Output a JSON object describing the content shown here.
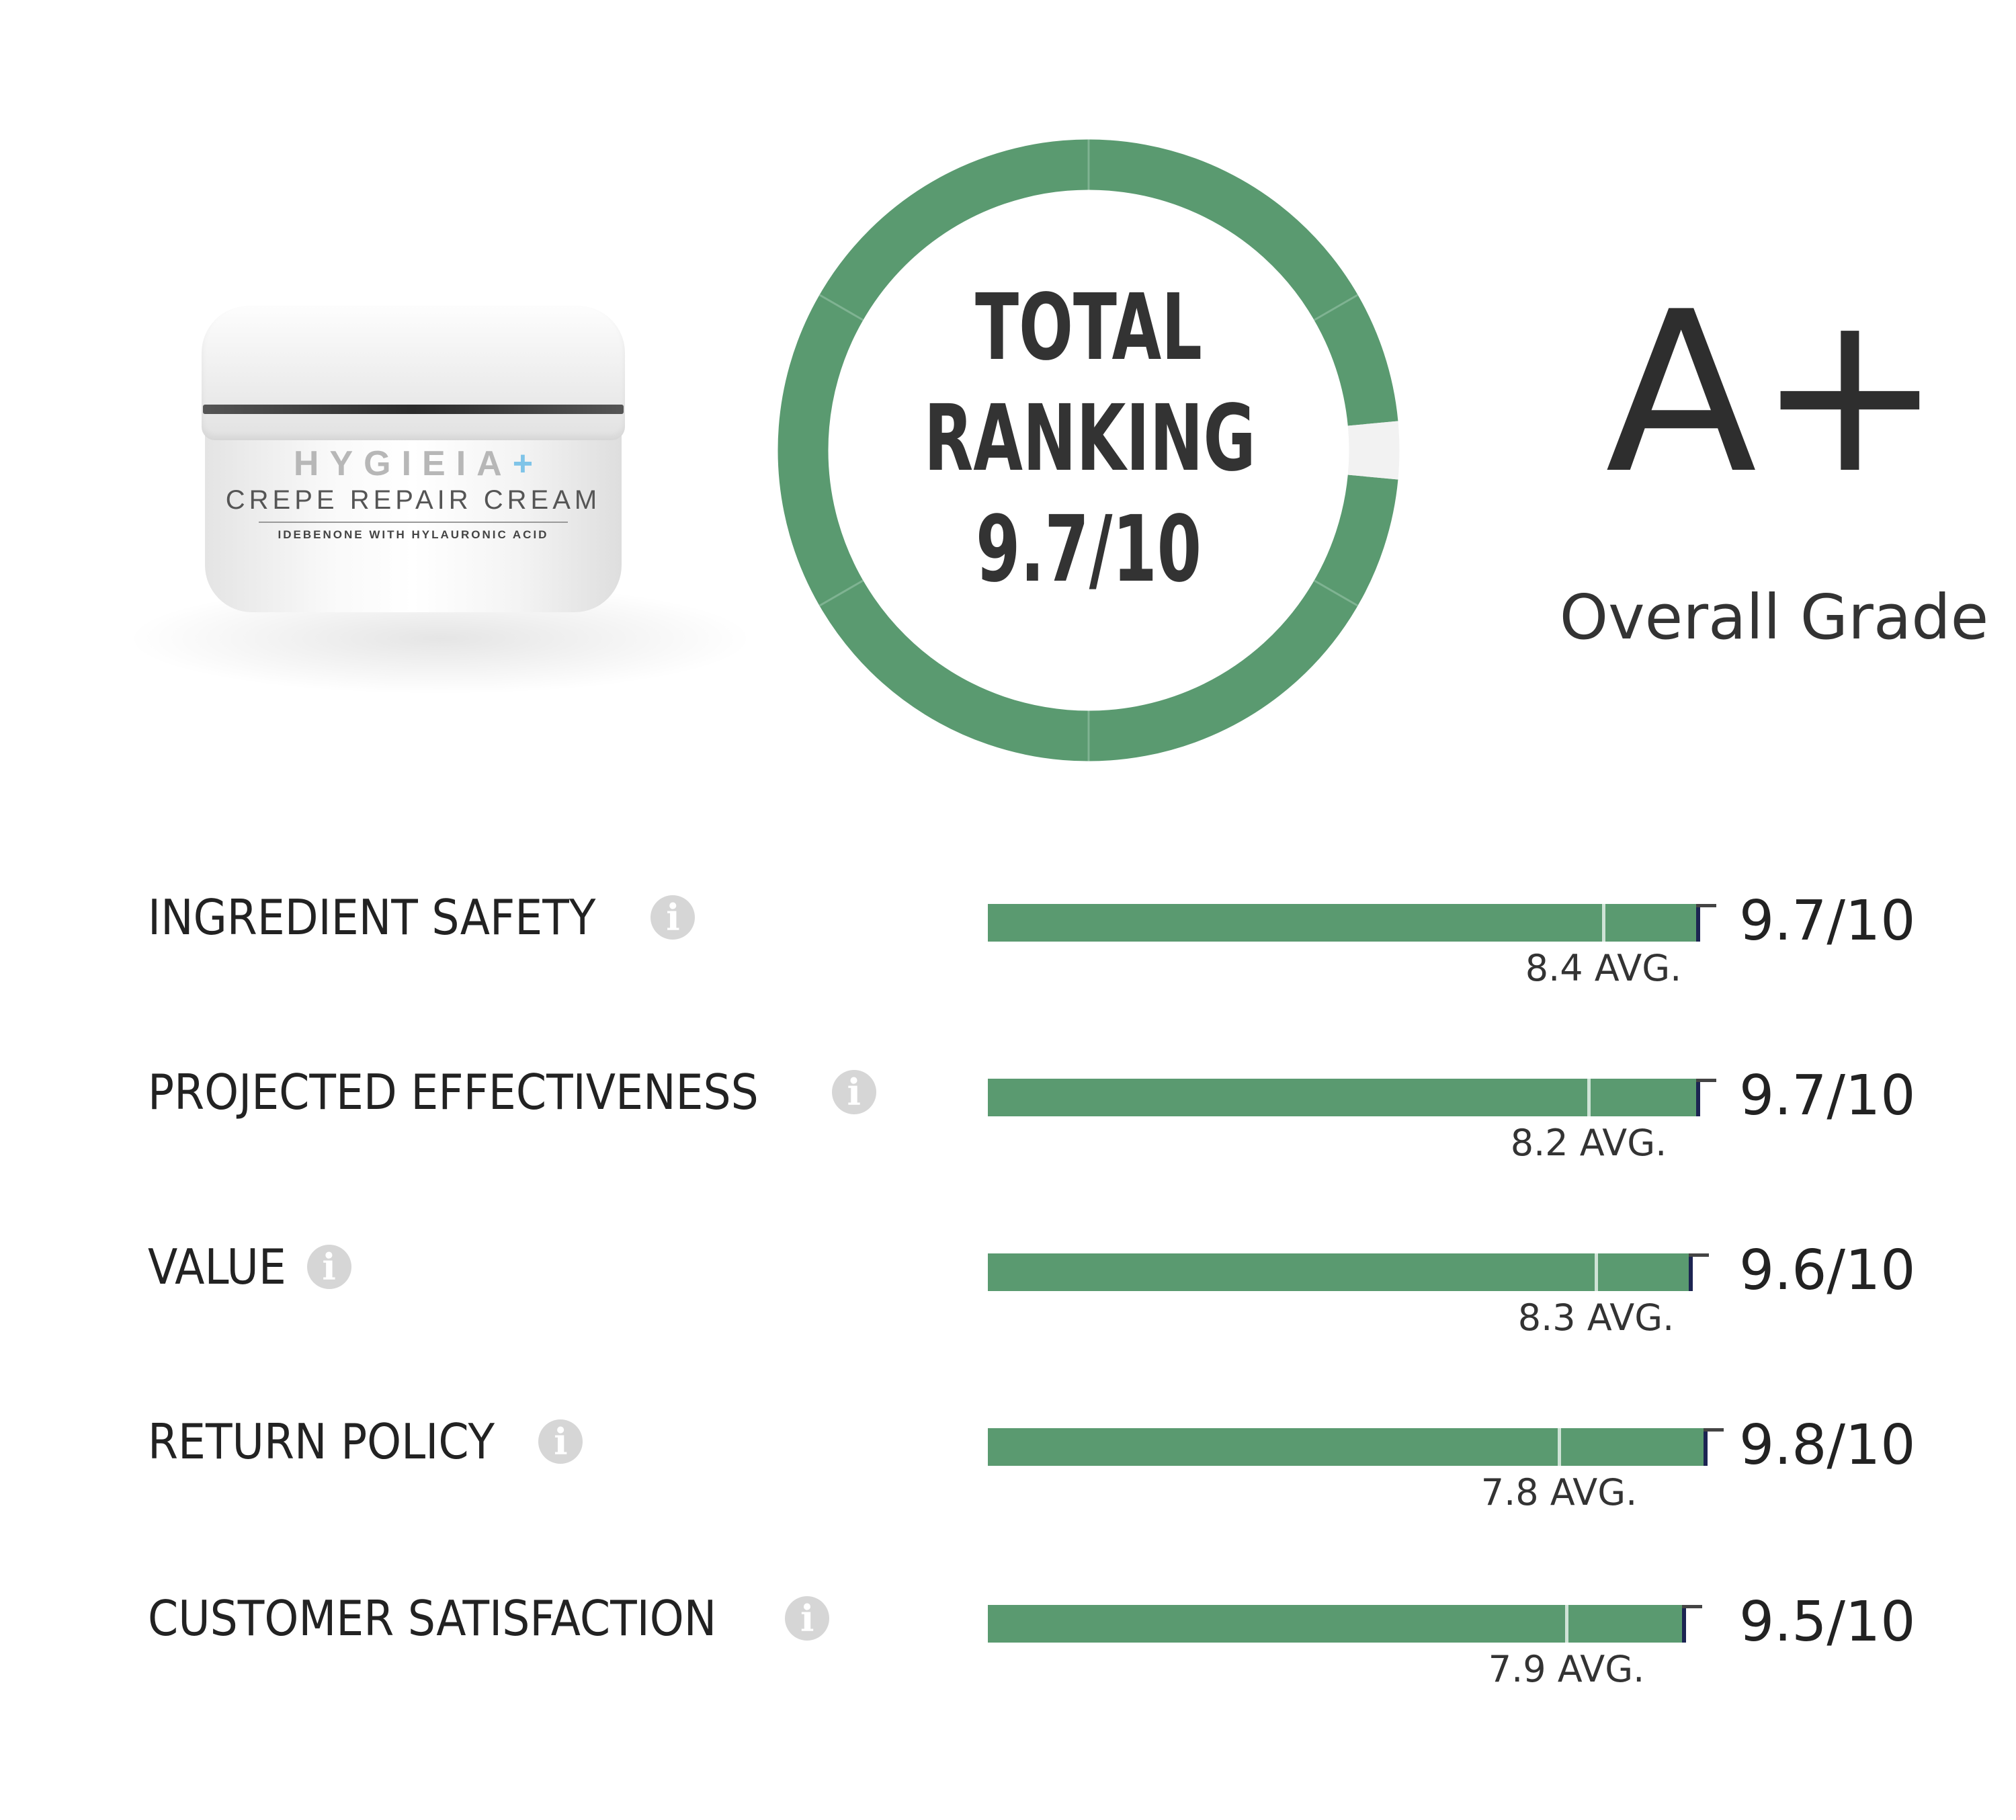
{
  "product": {
    "brand": "HYGIEIA",
    "brand_mark": "+",
    "name": "CREPE REPAIR CREAM",
    "subtitle": "IDEBENONE WITH HYLAURONIC ACID"
  },
  "total_ranking": {
    "line1": "TOTAL",
    "line2": "RANKING",
    "score": "9.7/10",
    "score_value": 9.7,
    "max": 10
  },
  "grade": {
    "value": "A+",
    "label": "Overall Grade"
  },
  "colors": {
    "accent_green": "#5a9a70",
    "ring_gap": "#f2f2f2",
    "marker_navy": "#1c2452"
  },
  "info_icon": "info-circle-icon",
  "metrics": [
    {
      "label": "INGREDIENT SAFETY",
      "score": "9.7/10",
      "score_value": 9.7,
      "avg": "8.4 AVG.",
      "avg_value": 8.4
    },
    {
      "label": "PROJECTED EFFECTIVENESS",
      "score": "9.7/10",
      "score_value": 9.7,
      "avg": "8.2 AVG.",
      "avg_value": 8.2
    },
    {
      "label": "VALUE",
      "score": "9.6/10",
      "score_value": 9.6,
      "avg": "8.3 AVG.",
      "avg_value": 8.3
    },
    {
      "label": "RETURN POLICY",
      "score": "9.8/10",
      "score_value": 9.8,
      "avg": "7.8 AVG.",
      "avg_value": 7.8
    },
    {
      "label": "CUSTOMER SATISFACTION",
      "score": "9.5/10",
      "score_value": 9.5,
      "avg": "7.9 AVG.",
      "avg_value": 7.9
    }
  ]
}
